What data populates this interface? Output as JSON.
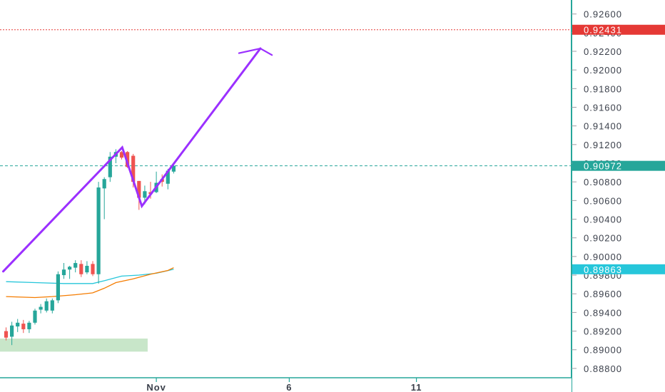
{
  "chart_data": {
    "type": "candlestick",
    "y_axis": {
      "position": "right",
      "range": [
        0.887,
        0.9275
      ],
      "ticks": [
        "0.92600",
        "0.92400",
        "0.92200",
        "0.92000",
        "0.91800",
        "0.91600",
        "0.91400",
        "0.91200",
        "0.91000",
        "0.90800",
        "0.90600",
        "0.90400",
        "0.90200",
        "0.90000",
        "0.89800",
        "0.89600",
        "0.89400",
        "0.89200",
        "0.89000",
        "0.88800"
      ]
    },
    "x_axis": {
      "labels": [
        {
          "text": "Nov",
          "bar": 26
        },
        {
          "text": "6",
          "bar": 49
        },
        {
          "text": "11",
          "bar": 71
        }
      ],
      "bars_visible": 101
    },
    "price_lines": [
      {
        "label": "0.92431",
        "value": 0.92431,
        "color": "#e53935",
        "style": "dotted"
      },
      {
        "label": "0.90972",
        "value": 0.90972,
        "color": "#26a69a",
        "style": "dashed"
      },
      {
        "label": "0.89863",
        "value": 0.89863,
        "color": "#26c6da",
        "style": "none"
      }
    ],
    "candles": [
      {
        "bar": 0,
        "o": 0.892,
        "h": 0.8924,
        "l": 0.891,
        "c": 0.8913
      },
      {
        "bar": 1,
        "o": 0.8914,
        "h": 0.893,
        "l": 0.8905,
        "c": 0.8926
      },
      {
        "bar": 2,
        "o": 0.8925,
        "h": 0.8933,
        "l": 0.8919,
        "c": 0.8929
      },
      {
        "bar": 3,
        "o": 0.8928,
        "h": 0.8932,
        "l": 0.8918,
        "c": 0.8922
      },
      {
        "bar": 4,
        "o": 0.8922,
        "h": 0.8931,
        "l": 0.8918,
        "c": 0.8929
      },
      {
        "bar": 5,
        "o": 0.8929,
        "h": 0.8944,
        "l": 0.8927,
        "c": 0.8942
      },
      {
        "bar": 6,
        "o": 0.8943,
        "h": 0.8949,
        "l": 0.8939,
        "c": 0.8946
      },
      {
        "bar": 7,
        "o": 0.8942,
        "h": 0.8955,
        "l": 0.894,
        "c": 0.8952
      },
      {
        "bar": 8,
        "o": 0.8942,
        "h": 0.8955,
        "l": 0.8939,
        "c": 0.8953
      },
      {
        "bar": 9,
        "o": 0.8953,
        "h": 0.8984,
        "l": 0.895,
        "c": 0.8981
      },
      {
        "bar": 10,
        "o": 0.898,
        "h": 0.8993,
        "l": 0.8976,
        "c": 0.8986
      },
      {
        "bar": 11,
        "o": 0.8986,
        "h": 0.899,
        "l": 0.8976,
        "c": 0.8989
      },
      {
        "bar": 12,
        "o": 0.8988,
        "h": 0.8996,
        "l": 0.8983,
        "c": 0.8993
      },
      {
        "bar": 13,
        "o": 0.8992,
        "h": 0.8996,
        "l": 0.8978,
        "c": 0.8981
      },
      {
        "bar": 14,
        "o": 0.8983,
        "h": 0.8995,
        "l": 0.8981,
        "c": 0.899
      },
      {
        "bar": 15,
        "o": 0.8992,
        "h": 0.8995,
        "l": 0.8979,
        "c": 0.8981
      },
      {
        "bar": 16,
        "o": 0.8981,
        "h": 0.908,
        "l": 0.8971,
        "c": 0.9074
      },
      {
        "bar": 17,
        "o": 0.9073,
        "h": 0.9085,
        "l": 0.904,
        "c": 0.9083
      },
      {
        "bar": 18,
        "o": 0.9085,
        "h": 0.9112,
        "l": 0.908,
        "c": 0.9107
      },
      {
        "bar": 19,
        "o": 0.9107,
        "h": 0.9115,
        "l": 0.91,
        "c": 0.9112
      },
      {
        "bar": 20,
        "o": 0.9112,
        "h": 0.9113,
        "l": 0.9104,
        "c": 0.9106
      },
      {
        "bar": 21,
        "o": 0.9112,
        "h": 0.9113,
        "l": 0.9095,
        "c": 0.9096
      },
      {
        "bar": 22,
        "o": 0.9108,
        "h": 0.911,
        "l": 0.9074,
        "c": 0.908
      },
      {
        "bar": 23,
        "o": 0.9081,
        "h": 0.9081,
        "l": 0.905,
        "c": 0.9063
      },
      {
        "bar": 24,
        "o": 0.9063,
        "h": 0.9076,
        "l": 0.9056,
        "c": 0.907
      },
      {
        "bar": 25,
        "o": 0.9069,
        "h": 0.908,
        "l": 0.9062,
        "c": 0.9067
      },
      {
        "bar": 26,
        "o": 0.9069,
        "h": 0.9091,
        "l": 0.9068,
        "c": 0.9079
      },
      {
        "bar": 27,
        "o": 0.9083,
        "h": 0.9088,
        "l": 0.9075,
        "c": 0.908
      },
      {
        "bar": 28,
        "o": 0.9078,
        "h": 0.9094,
        "l": 0.9072,
        "c": 0.9092
      },
      {
        "bar": 29,
        "o": 0.9091,
        "h": 0.9099,
        "l": 0.9089,
        "c": 0.90972
      }
    ],
    "moving_averages": [
      {
        "color": "#26c6da",
        "points": [
          [
            0,
            0.8973
          ],
          [
            5,
            0.8972
          ],
          [
            10,
            0.8971
          ],
          [
            15,
            0.8971
          ],
          [
            17,
            0.8974
          ],
          [
            20,
            0.8979
          ],
          [
            23,
            0.898
          ],
          [
            26,
            0.8982
          ],
          [
            29,
            0.89863
          ]
        ]
      },
      {
        "color": "#f57c00",
        "points": [
          [
            0,
            0.8957
          ],
          [
            5,
            0.8956
          ],
          [
            8,
            0.8957
          ],
          [
            12,
            0.8959
          ],
          [
            15,
            0.8961
          ],
          [
            17,
            0.8966
          ],
          [
            19,
            0.8972
          ],
          [
            22,
            0.8976
          ],
          [
            25,
            0.8981
          ],
          [
            28,
            0.8985
          ],
          [
            29,
            0.8988
          ]
        ]
      }
    ],
    "annotations": {
      "zone": {
        "bar_from": -1.5,
        "bar_to": 24.5,
        "price_from": 0.8898,
        "price_to": 0.8912,
        "color": "#c8e6c9"
      },
      "path": {
        "color": "#9b30ff",
        "points": [
          [
            -0.5,
            0.8984
          ],
          [
            20.1,
            0.9117
          ],
          [
            23.5,
            0.9054
          ],
          [
            44.0,
            0.9223
          ]
        ]
      },
      "arrow": {
        "color": "#9b30ff",
        "tip": [
          44.0,
          0.9223
        ],
        "left": [
          40.3,
          0.9218
        ],
        "right": [
          46.0,
          0.9216
        ]
      }
    }
  }
}
